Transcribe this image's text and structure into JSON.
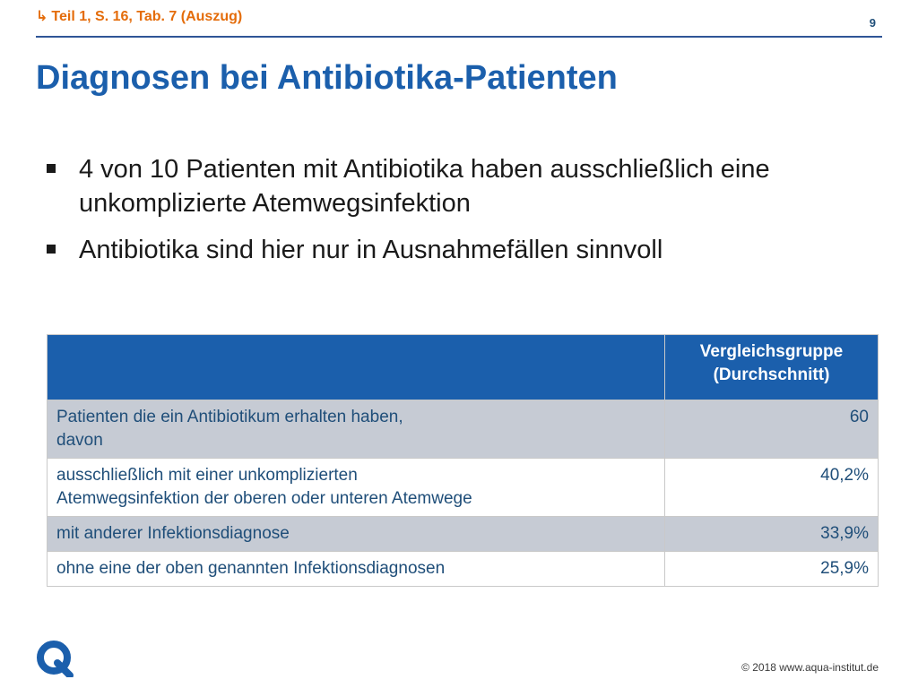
{
  "header": {
    "reference": "Teil 1, S. 16, Tab. 7 (Auszug)",
    "page_number": "9"
  },
  "slide": {
    "title": "Diagnosen bei Antibiotika-Patienten",
    "bullets": [
      "4 von 10 Patienten mit Antibiotika haben ausschließlich eine unkomplizierte Atemwegsinfektion",
      "Antibiotika sind hier nur in Ausnahmefällen sinnvoll"
    ]
  },
  "table": {
    "column_header_line1": "Vergleichsgruppe",
    "column_header_line2": "(Durchschnitt)",
    "rows": [
      {
        "label_line1": "Patienten die ein Antibiotikum erhalten haben,",
        "label_line2": "davon",
        "value": "60"
      },
      {
        "label_line1": "ausschließlich mit einer unkomplizierten",
        "label_line2": "Atemwegsinfektion der oberen oder unteren Atemwege",
        "value": "40,2%"
      },
      {
        "label_line1": "mit anderer Infektionsdiagnose",
        "value": "33,9%"
      },
      {
        "label_line1": "ohne eine der oben genannten Infektionsdiagnosen",
        "value": "25,9%"
      }
    ]
  },
  "footer": {
    "copyright": "© 2018 www.aqua-institut.de"
  },
  "colors": {
    "title_blue": "#1b5fac",
    "reference_orange": "#e46c0a",
    "row_shade": "#c6cbd4"
  }
}
